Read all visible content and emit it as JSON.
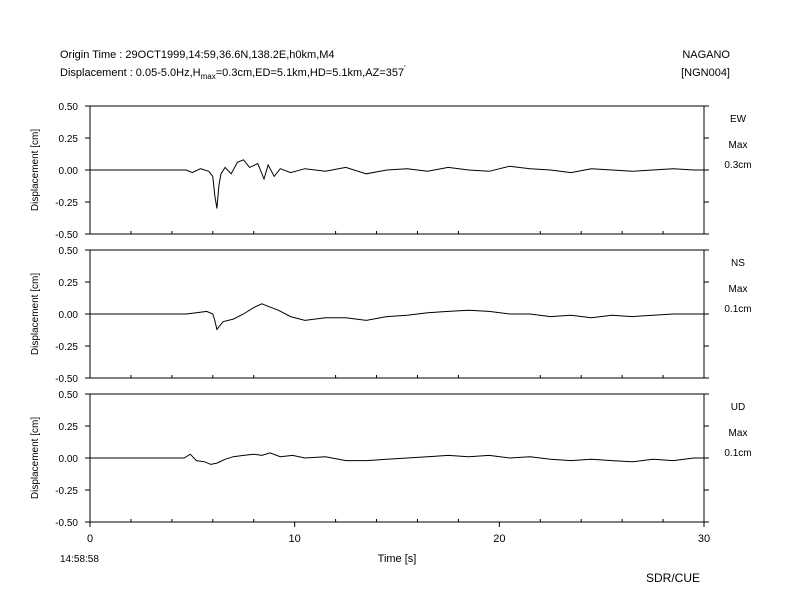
{
  "header": {
    "origin_time": "Origin Time : 29OCT1999,14:59,36.6N,138.2E,h0km,M4",
    "displacement_prefix": "Displacement : 0.05-5.0Hz,H",
    "displacement_sub": "max",
    "displacement_suffix": "=0.3cm,ED=5.1km,HD=5.1km,AZ=357",
    "degree_mark": "'",
    "station": "NAGANO",
    "station_code": "[NGN004]"
  },
  "footer": {
    "start_time": "14:58:58",
    "credit": "SDR/CUE"
  },
  "chart_data": {
    "type": "line",
    "xlabel": "Time [s]",
    "xlim": [
      0,
      30
    ],
    "xticks": [
      "0",
      "10",
      "20",
      "30"
    ],
    "panels": [
      {
        "component": "EW",
        "max_label": "Max",
        "max_value": "0.3cm",
        "ylabel": "Displacement [cm]",
        "ylim": [
          -0.5,
          0.5
        ],
        "yticks": [
          "0.50",
          "0.25",
          "0.00",
          "-0.25",
          "-0.50"
        ],
        "x": [
          0,
          3.2,
          4.7,
          5.0,
          5.4,
          5.8,
          6.0,
          6.1,
          6.2,
          6.3,
          6.4,
          6.6,
          6.9,
          7.2,
          7.5,
          7.8,
          8.2,
          8.5,
          8.7,
          9.0,
          9.3,
          9.8,
          10.5,
          11.5,
          12.5,
          13.5,
          14.5,
          15.5,
          16.5,
          17.5,
          18.5,
          19.5,
          20.5,
          21.5,
          22.5,
          23.5,
          24.5,
          25.5,
          26.5,
          27.5,
          28.5,
          29.5,
          30
        ],
        "y": [
          0,
          0,
          0,
          -0.02,
          0.01,
          -0.01,
          -0.05,
          -0.2,
          -0.3,
          -0.12,
          -0.03,
          0.02,
          -0.03,
          0.06,
          0.08,
          0.02,
          0.05,
          -0.07,
          0.04,
          -0.05,
          0.01,
          -0.02,
          0.01,
          -0.01,
          0.02,
          -0.03,
          0.0,
          0.01,
          -0.01,
          0.02,
          0.0,
          -0.01,
          0.03,
          0.01,
          0.0,
          -0.02,
          0.01,
          0.0,
          -0.01,
          0.0,
          0.01,
          0.0,
          0.0
        ]
      },
      {
        "component": "NS",
        "max_label": "Max",
        "max_value": "0.1cm",
        "ylabel": "Displacement [cm]",
        "ylim": [
          -0.5,
          0.5
        ],
        "yticks": [
          "0.50",
          "0.25",
          "0.00",
          "-0.25",
          "-0.50"
        ],
        "x": [
          0,
          4.7,
          5.2,
          5.7,
          6.0,
          6.1,
          6.2,
          6.5,
          7.0,
          7.5,
          8.0,
          8.4,
          8.7,
          9.2,
          9.8,
          10.5,
          11.5,
          12.5,
          13.5,
          14.5,
          15.5,
          16.5,
          17.5,
          18.5,
          19.5,
          20.5,
          21.5,
          22.5,
          23.5,
          24.5,
          25.5,
          26.5,
          27.5,
          28.5,
          29.5,
          30
        ],
        "y": [
          0,
          0,
          0.01,
          0.02,
          0.0,
          -0.05,
          -0.12,
          -0.06,
          -0.04,
          0.0,
          0.05,
          0.08,
          0.06,
          0.03,
          -0.02,
          -0.05,
          -0.03,
          -0.03,
          -0.05,
          -0.02,
          -0.01,
          0.01,
          0.02,
          0.03,
          0.02,
          0.0,
          0.0,
          -0.02,
          -0.01,
          -0.03,
          -0.01,
          -0.02,
          -0.01,
          0.0,
          0.0,
          0.0
        ]
      },
      {
        "component": "UD",
        "max_label": "Max",
        "max_value": "0.1cm",
        "ylabel": "Displacement [cm]",
        "ylim": [
          -0.5,
          0.5
        ],
        "yticks": [
          "0.50",
          "0.25",
          "0.00",
          "-0.25",
          "-0.50"
        ],
        "x": [
          0,
          3.2,
          4.6,
          4.9,
          5.2,
          5.6,
          5.9,
          6.2,
          6.6,
          7.0,
          7.5,
          8.0,
          8.4,
          8.8,
          9.3,
          9.9,
          10.5,
          11.5,
          12.5,
          13.5,
          14.5,
          15.5,
          16.5,
          17.5,
          18.5,
          19.5,
          20.5,
          21.5,
          22.5,
          23.5,
          24.5,
          25.5,
          26.5,
          27.5,
          28.5,
          29.5,
          30
        ],
        "y": [
          0,
          0,
          0,
          0.03,
          -0.02,
          -0.03,
          -0.05,
          -0.04,
          -0.01,
          0.01,
          0.02,
          0.03,
          0.02,
          0.04,
          0.01,
          0.02,
          0.0,
          0.01,
          -0.02,
          -0.02,
          -0.01,
          0.0,
          0.01,
          0.02,
          0.01,
          0.02,
          0.0,
          0.01,
          -0.01,
          -0.02,
          -0.01,
          -0.02,
          -0.03,
          -0.01,
          -0.02,
          0.0,
          0.0
        ]
      }
    ]
  }
}
